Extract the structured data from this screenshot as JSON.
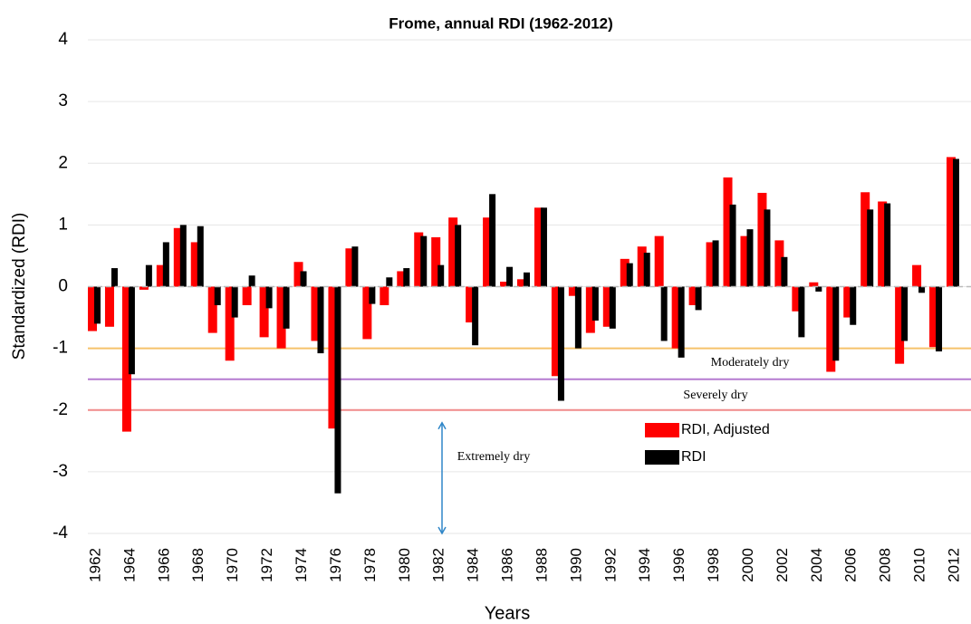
{
  "chart_data": {
    "type": "bar",
    "title": "Frome, annual RDI (1962-2012)",
    "x_label": "Years",
    "y_label": "Standardized (RDI)",
    "categories": [
      "1962",
      null,
      "1964",
      null,
      "1966",
      null,
      "1968",
      null,
      "1970",
      null,
      "1972",
      null,
      "1974",
      null,
      "1976",
      null,
      "1978",
      null,
      "1980",
      null,
      "1982",
      null,
      "1984",
      null,
      "1986",
      null,
      "1988",
      null,
      "1990",
      null,
      "1992",
      null,
      "1994",
      null,
      "1996",
      null,
      "1998",
      null,
      "2000",
      null,
      "2002",
      null,
      "2004",
      null,
      "2006",
      null,
      "2008",
      null,
      "2010",
      null,
      "2012"
    ],
    "series": [
      {
        "name": "RDI, Adjusted",
        "color": "#ff0000",
        "values": [
          -0.72,
          -0.65,
          -2.35,
          -0.05,
          0.35,
          0.95,
          0.72,
          -0.75,
          -1.2,
          -0.3,
          -0.82,
          -1.0,
          0.4,
          -0.88,
          -2.3,
          0.62,
          -0.85,
          -0.3,
          0.25,
          0.88,
          0.8,
          1.12,
          -0.58,
          1.12,
          0.08,
          0.12,
          1.28,
          -1.45,
          -0.15,
          -0.75,
          -0.65,
          0.45,
          0.65,
          0.82,
          -1.0,
          -0.3,
          0.72,
          1.77,
          0.82,
          1.52,
          0.75,
          -0.4,
          0.07,
          -1.38,
          -0.5,
          1.53,
          1.38,
          -1.25,
          0.35,
          -0.98,
          2.1
        ]
      },
      {
        "name": "RDI",
        "color": "#000000",
        "values": [
          -0.6,
          0.3,
          -1.42,
          0.35,
          0.72,
          1.0,
          0.98,
          -0.3,
          -0.5,
          0.18,
          -0.35,
          -0.68,
          0.25,
          -1.08,
          -3.35,
          0.65,
          -0.28,
          0.15,
          0.3,
          0.82,
          0.35,
          1.0,
          -0.95,
          1.5,
          0.32,
          0.23,
          1.28,
          -1.85,
          -1.0,
          -0.55,
          -0.68,
          0.38,
          0.55,
          -0.88,
          -1.15,
          -0.38,
          0.75,
          1.33,
          0.93,
          1.25,
          0.48,
          -0.82,
          -0.08,
          -1.2,
          -0.62,
          1.25,
          1.35,
          -0.88,
          -0.1,
          -1.05,
          2.07
        ]
      }
    ],
    "ylim": [
      -4,
      4
    ],
    "yticks": [
      -4,
      -3,
      -2,
      -1,
      0,
      1,
      2,
      3,
      4
    ],
    "grid": true,
    "reference_lines": [
      {
        "value": -1,
        "color": "#f5c26b",
        "label": "Moderately dry"
      },
      {
        "value": -1.5,
        "color": "#b57bd0",
        "label": "Severely dry"
      },
      {
        "value": -2,
        "color": "#f08a8a"
      }
    ],
    "range_annotation": {
      "label": "Extremely dry",
      "range": [
        -2,
        -4
      ],
      "color": "#2f86c8"
    }
  }
}
